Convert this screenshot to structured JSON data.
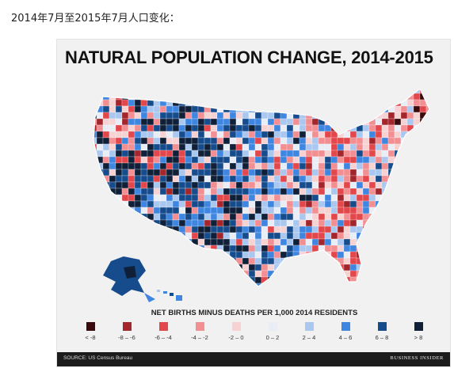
{
  "caption": "2014年7月至2015年7月人口变化：",
  "map": {
    "title": "NATURAL POPULATION CHANGE, 2014-2015",
    "legend_title": "NET BIRTHS MINUS DEATHS PER 1,000 2014 RESIDENTS",
    "legend": [
      {
        "label": "< -8",
        "color": "#3a0a0c"
      },
      {
        "label": "-8 – -6",
        "color": "#a3262c"
      },
      {
        "label": "-6 – -4",
        "color": "#e2474b"
      },
      {
        "label": "-4 – -2",
        "color": "#f28f92"
      },
      {
        "label": "-2 – 0",
        "color": "#f7d2d3"
      },
      {
        "label": "0 – 2",
        "color": "#e8edf6"
      },
      {
        "label": "2 – 4",
        "color": "#a9c7ef"
      },
      {
        "label": "4 – 6",
        "color": "#3f86e0"
      },
      {
        "label": "6 – 8",
        "color": "#174c8c"
      },
      {
        "label": "> 8",
        "color": "#0f2038"
      }
    ],
    "source": "SOURCE: US Census Bureau",
    "brand": "BUSINESS INSIDER"
  }
}
